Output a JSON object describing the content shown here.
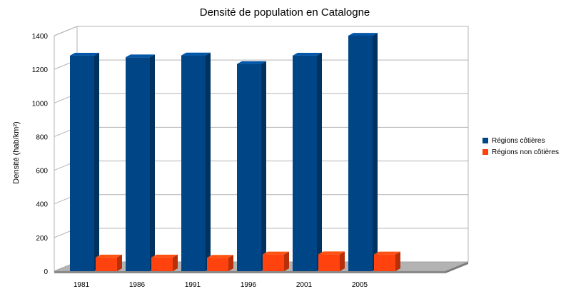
{
  "chart_data": {
    "type": "bar",
    "title": "Densité de population en Catalogne",
    "xlabel": "",
    "ylabel": "Densité (hab/km²)",
    "categories": [
      "1981",
      "1986",
      "1991",
      "1996",
      "2001",
      "2005"
    ],
    "ylim": [
      0,
      1400
    ],
    "yticks": [
      "0",
      "200",
      "400",
      "600",
      "800",
      "1000",
      "1200",
      "1400"
    ],
    "grid": true,
    "three_d": true,
    "legend_position": "right",
    "series": [
      {
        "name": "Régions côtières",
        "color": "#004586",
        "values": [
          1282,
          1272,
          1283,
          1232,
          1282,
          1400
        ]
      },
      {
        "name": "Régions non côtières",
        "color": "#ff420e",
        "values": [
          82,
          82,
          80,
          100,
          101,
          100
        ]
      }
    ]
  }
}
